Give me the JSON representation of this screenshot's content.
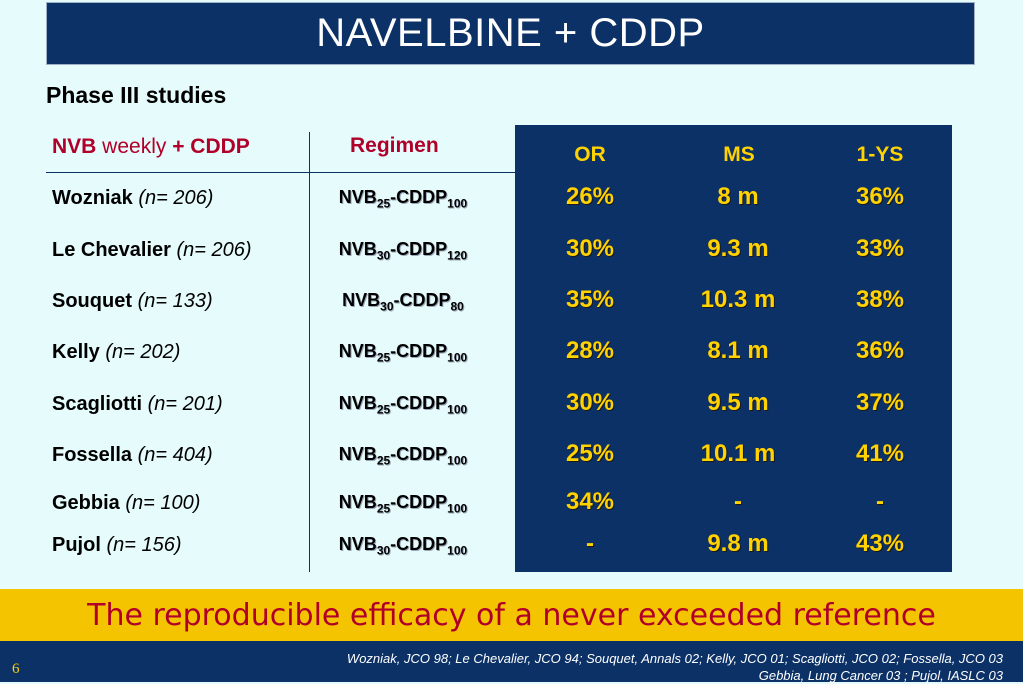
{
  "title": "NAVELBINE +  CDDP",
  "subtitle": "Phase III studies",
  "header": {
    "nvb": "NVB",
    "weekly": " weekly ",
    "cddp": "+ CDDP",
    "regimen": "Regimen",
    "or": "OR",
    "ms": "MS",
    "ys": "1-YS"
  },
  "rows": [
    {
      "name": "Wozniak",
      "n": "(n= 206)",
      "nvb": "NVB",
      "nvb_dose": "25",
      "cddp": "-CDDP",
      "cddp_dose": "100",
      "or": "26%",
      "ms": "8 m",
      "ys": "36%"
    },
    {
      "name": "Le Chevalier",
      "n": "(n= 206)",
      "nvb": "NVB",
      "nvb_dose": "30",
      "cddp": "-CDDP",
      "cddp_dose": "120",
      "or": "30%",
      "ms": "9.3 m",
      "ys": "33%"
    },
    {
      "name": "Souquet",
      "n": "(n= 133)",
      "nvb": "NVB",
      "nvb_dose": "30",
      "cddp": "-CDDP",
      "cddp_dose": "80",
      "or": "35%",
      "ms": "10.3 m",
      "ys": "38%"
    },
    {
      "name": "Kelly",
      "n": "(n= 202)",
      "nvb": "NVB",
      "nvb_dose": "25",
      "cddp": "-CDDP",
      "cddp_dose": "100",
      "or": "28%",
      "ms": "8.1 m",
      "ys": "36%"
    },
    {
      "name": "Scagliotti",
      "n": "(n= 201)",
      "nvb": "NVB",
      "nvb_dose": "25",
      "cddp": "-CDDP",
      "cddp_dose": "100",
      "or": "30%",
      "ms": "9.5 m",
      "ys": "37%"
    },
    {
      "name": "Fossella",
      "n": "(n= 404)",
      "nvb": "NVB",
      "nvb_dose": "25",
      "cddp": "-CDDP",
      "cddp_dose": "100",
      "or": "25%",
      "ms": "10.1 m",
      "ys": "41%"
    },
    {
      "name": "Gebbia",
      "n": "(n= 100)",
      "nvb": "NVB",
      "nvb_dose": "25",
      "cddp": "-CDDP",
      "cddp_dose": "100",
      "or": "34%",
      "ms": "-",
      "ys": "-"
    },
    {
      "name": "Pujol",
      "n": "(n= 156)",
      "nvb": "NVB",
      "nvb_dose": "30",
      "cddp": "-CDDP",
      "cddp_dose": "100",
      "or": "-",
      "ms": "9.8 m",
      "ys": "43%"
    }
  ],
  "banner": "The reproducible efficacy of a never exceeded reference",
  "footer": {
    "page_number": "6",
    "refs_line1": "Wozniak, JCO 98; Le Chevalier, JCO 94; Souquet, Annals 02; Kelly, JCO 01; Scagliotti, JCO 02; Fossella, JCO 03",
    "refs_line2": "Gebbia, Lung Cancer 03 ; Pujol, IASLC 03"
  },
  "colors": {
    "navy": "#0c3166",
    "gold": "#ffd200",
    "crimson": "#b0002a",
    "banner_yellow": "#f5c400",
    "background": "#e6fbfb"
  }
}
